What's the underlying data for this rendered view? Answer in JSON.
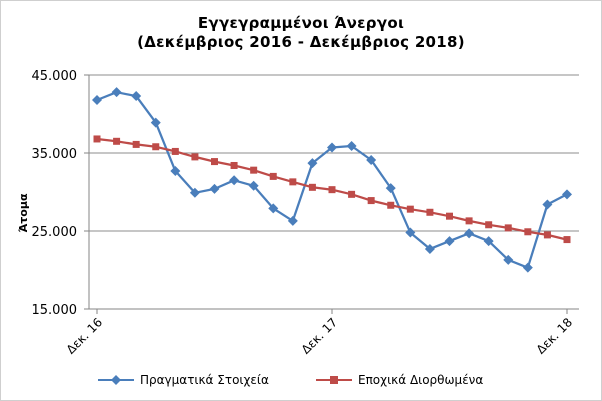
{
  "chart_data": {
    "type": "line",
    "title": "Εγγεγραμμένοι Άνεργοι",
    "subtitle": "(Δεκέμβριος 2016 - Δεκέμβριος 2018)",
    "ylabel": "Άτομα",
    "xlabel": "",
    "ylim": [
      15000,
      45000
    ],
    "yticks": [
      "15.000",
      "25.000",
      "35.000",
      "45.000"
    ],
    "ytick_values": [
      15000,
      25000,
      35000,
      45000
    ],
    "xtick_labels": [
      {
        "index": 0,
        "label": "Δεκ. 16"
      },
      {
        "index": 12,
        "label": "Δεκ. 17"
      },
      {
        "index": 24,
        "label": "Δεκ. 18"
      }
    ],
    "grid": true,
    "legend_position": "bottom",
    "series": [
      {
        "name": "Πραγματικά Στοιχεία",
        "color": "#4a7ebb",
        "marker": "diamond",
        "values": [
          41800,
          42800,
          42300,
          38900,
          32700,
          29900,
          30400,
          31500,
          30800,
          27900,
          26300,
          33700,
          35700,
          35900,
          34100,
          30500,
          24800,
          22700,
          23700,
          24700,
          23700,
          21300,
          20300,
          28400,
          29700
        ]
      },
      {
        "name": "Εποχικά Διορθωμένα",
        "color": "#be4b48",
        "marker": "square",
        "values": [
          36800,
          36500,
          36100,
          35800,
          35200,
          34500,
          33900,
          33400,
          32800,
          32000,
          31300,
          30600,
          30300,
          29700,
          28900,
          28300,
          27800,
          27400,
          26900,
          26300,
          25800,
          25400,
          24900,
          24500,
          23900
        ]
      }
    ]
  }
}
